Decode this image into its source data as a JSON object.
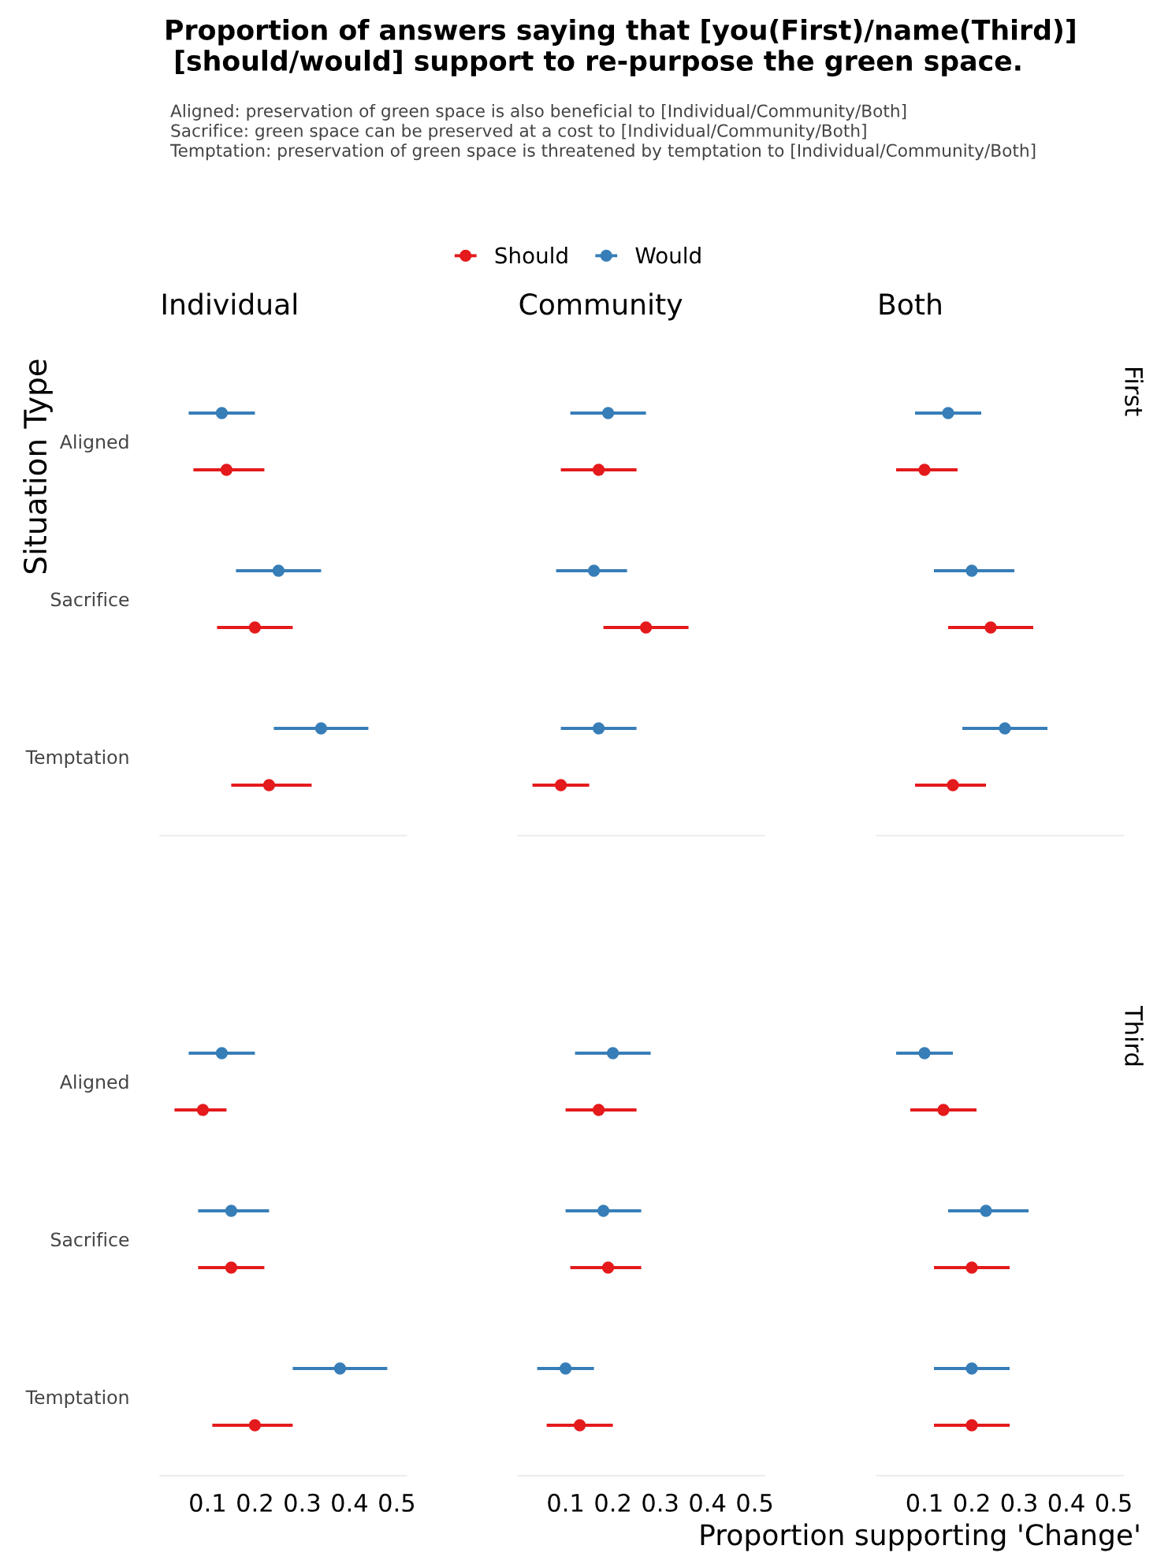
{
  "chart_data": [
    {
      "type": "other",
      "title": "Proportion of answers saying that [you(First)/name(Third)]\n [should/would] support to re-purpose the green space.",
      "subtitle": "Aligned: preservation of green space is also beneficial to [Individual/Community/Both]\nSacrifice: green space can be preserved at a cost to [Individual/Community/Both]\nTemptation: preservation of green space is threatened by temptation to [Individual/Community/Both]",
      "xlabel": "Proportion supporting 'Change'",
      "ylabel": "Situation Type"
    },
    {
      "type": "scatter",
      "orientation": "horizontal",
      "title": "Individual",
      "categories": [
        "Aligned",
        "Sacrifice",
        "Temptation"
      ],
      "xlim": [
        0,
        0.52
      ],
      "xticks": [
        0.1,
        0.2,
        0.3,
        0.4,
        0.5
      ],
      "tick_labels": "y",
      "legend": "top",
      "grid": false,
      "marker": "circle",
      "series": [
        {
          "name": "Should",
          "color": "#e41a1c",
          "values": [
            0.14,
            0.2,
            0.23
          ],
          "errors": [
            [
              0.07,
              0.22
            ],
            [
              0.12,
              0.28
            ],
            [
              0.15,
              0.32
            ]
          ]
        },
        {
          "name": "Would",
          "color": "#377eb8",
          "values": [
            0.13,
            0.25,
            0.34
          ],
          "errors": [
            [
              0.06,
              0.2
            ],
            [
              0.16,
              0.34
            ],
            [
              0.24,
              0.44
            ]
          ]
        }
      ]
    },
    {
      "type": "scatter",
      "orientation": "horizontal",
      "title": "Community",
      "categories": [
        "Aligned",
        "Sacrifice",
        "Temptation"
      ],
      "xlim": [
        0,
        0.52
      ],
      "xticks": [
        0.1,
        0.2,
        0.3,
        0.4,
        0.5
      ],
      "tick_labels": false,
      "grid": false,
      "marker": "circle",
      "series": [
        {
          "name": "Should",
          "color": "#e41a1c",
          "values": [
            0.17,
            0.27,
            0.09
          ],
          "errors": [
            [
              0.09,
              0.25
            ],
            [
              0.18,
              0.36
            ],
            [
              0.03,
              0.15
            ]
          ]
        },
        {
          "name": "Would",
          "color": "#377eb8",
          "values": [
            0.19,
            0.16,
            0.17
          ],
          "errors": [
            [
              0.11,
              0.27
            ],
            [
              0.08,
              0.23
            ],
            [
              0.09,
              0.25
            ]
          ]
        }
      ]
    },
    {
      "type": "scatter",
      "orientation": "horizontal",
      "title": "Both",
      "y2label": "First",
      "categories": [
        "Aligned",
        "Sacrifice",
        "Temptation"
      ],
      "xlim": [
        0,
        0.52
      ],
      "xticks": [
        0.1,
        0.2,
        0.3,
        0.4,
        0.5
      ],
      "tick_labels": false,
      "grid": false,
      "marker": "circle",
      "series": [
        {
          "name": "Should",
          "color": "#e41a1c",
          "values": [
            0.1,
            0.24,
            0.16
          ],
          "errors": [
            [
              0.04,
              0.17
            ],
            [
              0.15,
              0.33
            ],
            [
              0.08,
              0.23
            ]
          ]
        },
        {
          "name": "Would",
          "color": "#377eb8",
          "values": [
            0.15,
            0.2,
            0.27
          ],
          "errors": [
            [
              0.08,
              0.22
            ],
            [
              0.12,
              0.29
            ],
            [
              0.18,
              0.36
            ]
          ]
        }
      ]
    },
    {
      "type": "scatter",
      "orientation": "horizontal",
      "categories": [
        "Aligned",
        "Sacrifice",
        "Temptation"
      ],
      "xlim": [
        0,
        0.52
      ],
      "xticks": [
        0.1,
        0.2,
        0.3,
        0.4,
        0.5
      ],
      "grid": false,
      "marker": "circle",
      "series": [
        {
          "name": "Should",
          "color": "#e41a1c",
          "values": [
            0.09,
            0.15,
            0.2
          ],
          "errors": [
            [
              0.03,
              0.14
            ],
            [
              0.08,
              0.22
            ],
            [
              0.11,
              0.28
            ]
          ]
        },
        {
          "name": "Would",
          "color": "#377eb8",
          "values": [
            0.13,
            0.15,
            0.38
          ],
          "errors": [
            [
              0.06,
              0.2
            ],
            [
              0.08,
              0.23
            ],
            [
              0.28,
              0.48
            ]
          ]
        }
      ]
    },
    {
      "type": "scatter",
      "orientation": "horizontal",
      "categories": [
        "Aligned",
        "Sacrifice",
        "Temptation"
      ],
      "xlim": [
        0,
        0.52
      ],
      "xticks": [
        0.1,
        0.2,
        0.3,
        0.4,
        0.5
      ],
      "tick_labels": "x",
      "grid": false,
      "marker": "circle",
      "series": [
        {
          "name": "Should",
          "color": "#e41a1c",
          "values": [
            0.17,
            0.19,
            0.13
          ],
          "errors": [
            [
              0.1,
              0.25
            ],
            [
              0.11,
              0.26
            ],
            [
              0.06,
              0.2
            ]
          ]
        },
        {
          "name": "Would",
          "color": "#377eb8",
          "values": [
            0.2,
            0.18,
            0.1
          ],
          "errors": [
            [
              0.12,
              0.28
            ],
            [
              0.1,
              0.26
            ],
            [
              0.04,
              0.16
            ]
          ]
        }
      ]
    },
    {
      "type": "scatter",
      "orientation": "horizontal",
      "y2label": "Third",
      "categories": [
        "Aligned",
        "Sacrifice",
        "Temptation"
      ],
      "xlim": [
        0,
        0.52
      ],
      "xticks": [
        0.1,
        0.2,
        0.3,
        0.4,
        0.5
      ],
      "tick_labels": "x",
      "grid": false,
      "marker": "circle",
      "series": [
        {
          "name": "Should",
          "color": "#e41a1c",
          "values": [
            0.14,
            0.2,
            0.2
          ],
          "errors": [
            [
              0.07,
              0.21
            ],
            [
              0.12,
              0.28
            ],
            [
              0.12,
              0.28
            ]
          ]
        },
        {
          "name": "Would",
          "color": "#377eb8",
          "values": [
            0.1,
            0.23,
            0.2
          ],
          "errors": [
            [
              0.04,
              0.16
            ],
            [
              0.15,
              0.32
            ],
            [
              0.12,
              0.28
            ]
          ]
        }
      ]
    }
  ]
}
